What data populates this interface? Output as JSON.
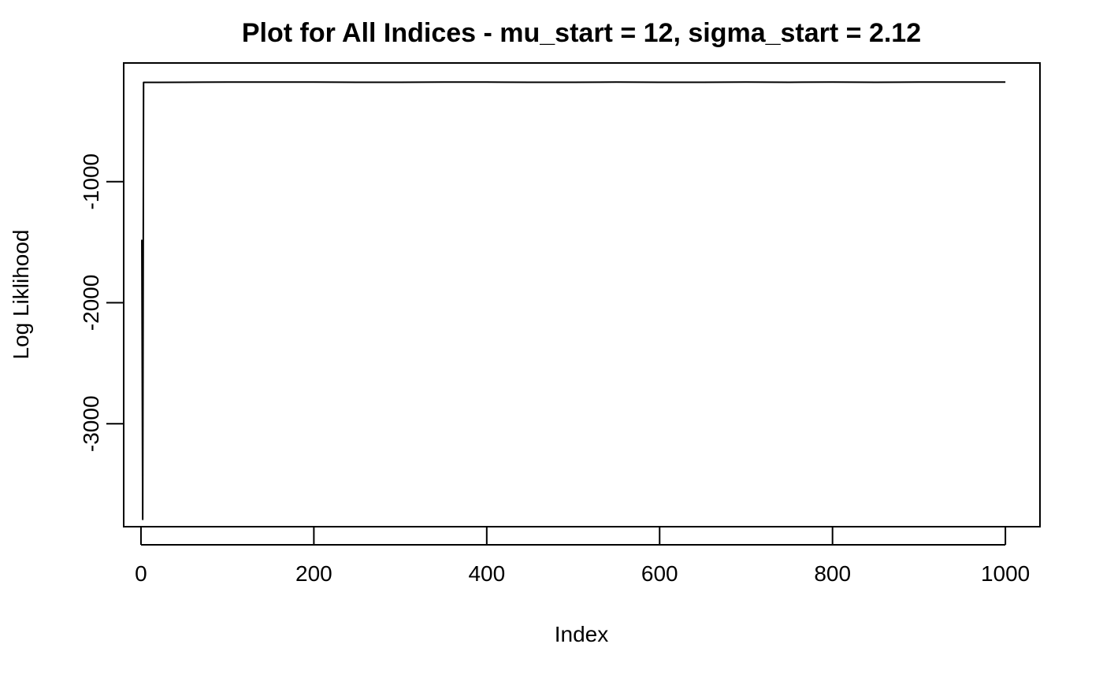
{
  "chart_data": {
    "type": "line",
    "title": "Plot for All Indices - mu_start = 12, sigma_start = 2.12",
    "xlabel": "Index",
    "ylabel": "Log Liklihood",
    "xlim": [
      -20,
      1040
    ],
    "ylim": [
      -3850,
      -20
    ],
    "xticks": [
      0,
      200,
      400,
      600,
      800,
      1000
    ],
    "xtick_labels": [
      "0",
      "200",
      "400",
      "600",
      "800",
      "1000"
    ],
    "yticks": [
      -1000,
      -2000,
      -3000
    ],
    "ytick_labels": [
      "-1000",
      "-2000",
      "-3000"
    ],
    "grid": false,
    "legend": "none",
    "series": [
      {
        "x": [
          1,
          2,
          3,
          4,
          20,
          50,
          100,
          150,
          200,
          250,
          300,
          350,
          400,
          450,
          500,
          550,
          600,
          650,
          700,
          750,
          800,
          850,
          900,
          950,
          1000
        ],
        "values": [
          -1480,
          -3790,
          -180,
          -180,
          -180,
          -179,
          -178,
          -178,
          -178,
          -179,
          -179,
          -178,
          -178,
          -179,
          -179,
          -178,
          -179,
          -179,
          -178,
          -179,
          -178,
          -179,
          -178,
          -178,
          -178
        ]
      }
    ],
    "colors": {
      "line": "#000000",
      "frame": "#000000"
    }
  }
}
